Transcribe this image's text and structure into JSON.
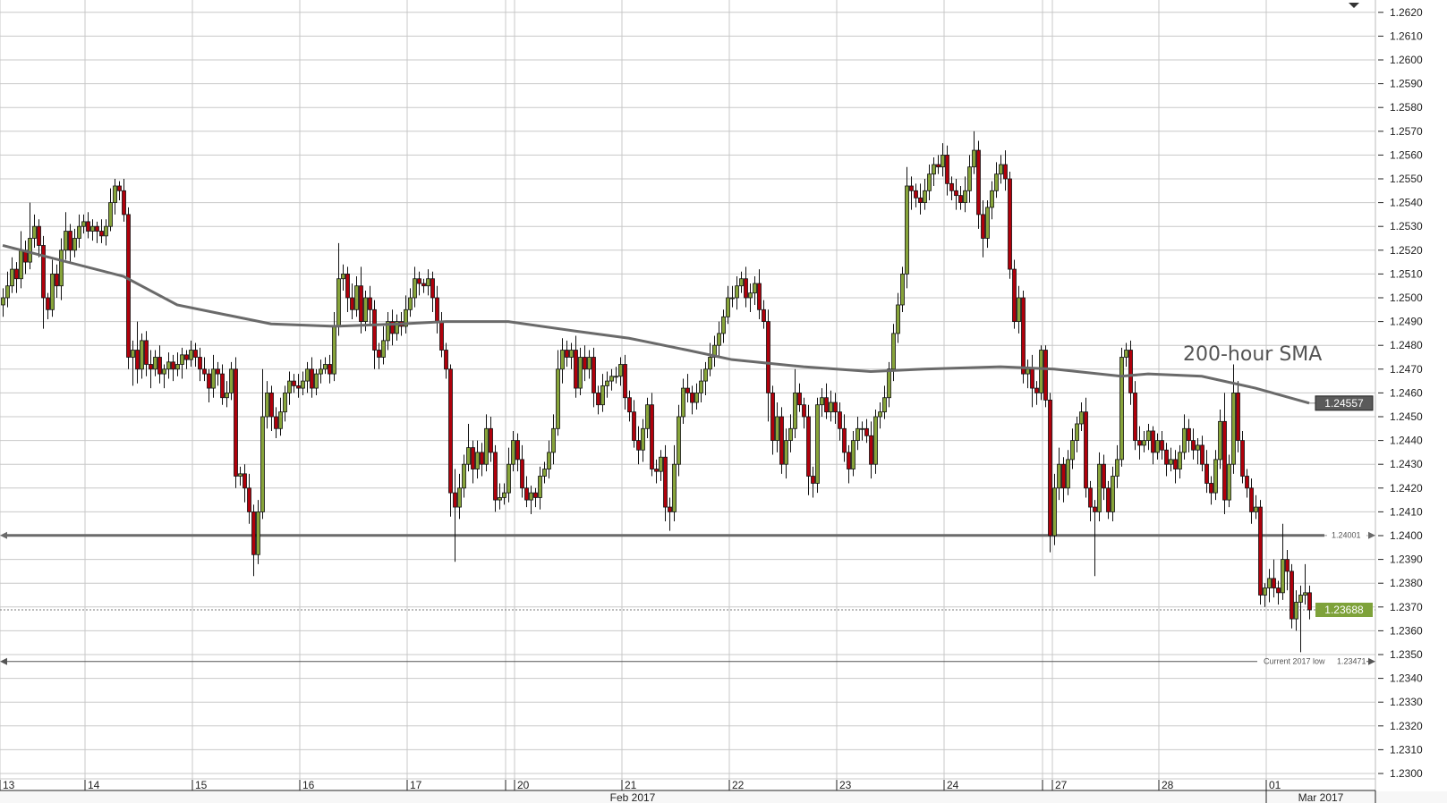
{
  "chart_data": {
    "type": "candlestick",
    "title": "",
    "xlabel": "",
    "ylabel": "",
    "ylim": [
      1.23,
      1.262
    ],
    "grid": true,
    "colors": {
      "up": "#87a43a",
      "down": "#b0000b",
      "sma": "#6a6a6a",
      "last_price_label": "#7ea23a",
      "sma_label": "#5a5a5a",
      "grid": "#c8c8c8",
      "level": "#6a6a6a"
    },
    "y_ticks": [
      "1.2300",
      "1.2310",
      "1.2320",
      "1.2330",
      "1.2340",
      "1.2350",
      "1.2360",
      "1.2370",
      "1.2380",
      "1.2390",
      "1.2400",
      "1.2410",
      "1.2420",
      "1.2430",
      "1.2440",
      "1.2450",
      "1.2460",
      "1.2470",
      "1.2480",
      "1.2490",
      "1.2500",
      "1.2510",
      "1.2520",
      "1.2530",
      "1.2540",
      "1.2550",
      "1.2560",
      "1.2570",
      "1.2580",
      "1.2590",
      "1.2600",
      "1.2610",
      "1.2620"
    ],
    "x_ticks": [
      {
        "label": "13",
        "hour": -0.6
      },
      {
        "label": "14",
        "hour": 18.4
      },
      {
        "label": "15",
        "hour": 42.4
      },
      {
        "label": "16",
        "hour": 66.4
      },
      {
        "label": "17",
        "hour": 90.4
      },
      {
        "label": "20",
        "hour": 114.4
      },
      {
        "label": "21",
        "hour": 138.4
      },
      {
        "label": "22",
        "hour": 162.4
      },
      {
        "label": "23",
        "hour": 186.4
      },
      {
        "label": "24",
        "hour": 210.4
      },
      {
        "label": "27",
        "hour": 234.6
      },
      {
        "label": "28",
        "hour": 258.4
      },
      {
        "label": "01",
        "hour": 282.4
      }
    ],
    "session_breaks": [
      112.4,
      232.4
    ],
    "month_labels": [
      "Feb 2017",
      "Mar 2017"
    ],
    "first_open": 1.2497,
    "close": [
      1.25,
      1.2505,
      1.2512,
      1.2508,
      1.252,
      1.2515,
      1.2525,
      1.253,
      1.2522,
      1.25,
      1.2495,
      1.251,
      1.2505,
      1.252,
      1.2528,
      1.252,
      1.2525,
      1.253,
      1.2532,
      1.2528,
      1.253,
      1.2528,
      1.2526,
      1.253,
      1.254,
      1.2547,
      1.2545,
      1.2535,
      1.2475,
      1.2478,
      1.247,
      1.2482,
      1.2472,
      1.247,
      1.2475,
      1.2468,
      1.247,
      1.2473,
      1.247,
      1.2472,
      1.2476,
      1.2474,
      1.2478,
      1.2475,
      1.247,
      1.2468,
      1.2462,
      1.247,
      1.2468,
      1.2458,
      1.246,
      1.247,
      1.2425,
      1.2426,
      1.242,
      1.241,
      1.2392,
      1.241,
      1.245,
      1.246,
      1.245,
      1.2445,
      1.2452,
      1.246,
      1.2465,
      1.2463,
      1.2462,
      1.2465,
      1.247,
      1.2462,
      1.2468,
      1.247,
      1.2472,
      1.2468,
      1.2488,
      1.2508,
      1.251,
      1.25,
      1.2495,
      1.2505,
      1.249,
      1.25,
      1.2495,
      1.2478,
      1.2475,
      1.2482,
      1.249,
      1.2485,
      1.249,
      1.2488,
      1.2495,
      1.25,
      1.2508,
      1.2506,
      1.2505,
      1.2508,
      1.25,
      1.249,
      1.2478,
      1.247,
      1.2418,
      1.2412,
      1.242,
      1.243,
      1.2437,
      1.2428,
      1.2435,
      1.243,
      1.2445,
      1.2435,
      1.2415,
      1.2416,
      1.2418,
      1.243,
      1.244,
      1.2432,
      1.242,
      1.2415,
      1.2418,
      1.2416,
      1.2425,
      1.2428,
      1.2435,
      1.2445,
      1.247,
      1.2478,
      1.2475,
      1.2478,
      1.2462,
      1.2475,
      1.247,
      1.2475,
      1.246,
      1.2455,
      1.2463,
      1.2465,
      1.2467,
      1.2467,
      1.2472,
      1.2458,
      1.2452,
      1.244,
      1.2436,
      1.2445,
      1.2455,
      1.2428,
      1.2427,
      1.2433,
      1.2412,
      1.241,
      1.243,
      1.245,
      1.2462,
      1.246,
      1.2456,
      1.246,
      1.2465,
      1.247,
      1.2475,
      1.248,
      1.2485,
      1.2492,
      1.25,
      1.25,
      1.2505,
      1.2508,
      1.25,
      1.2502,
      1.2506,
      1.2495,
      1.249,
      1.246,
      1.244,
      1.245,
      1.243,
      1.244,
      1.2445,
      1.246,
      1.2455,
      1.245,
      1.2425,
      1.2422,
      1.2455,
      1.2458,
      1.2452,
      1.2456,
      1.2452,
      1.2445,
      1.2435,
      1.2428,
      1.244,
      1.2445,
      1.2445,
      1.2442,
      1.243,
      1.245,
      1.2452,
      1.2458,
      1.247,
      1.2485,
      1.2497,
      1.251,
      1.2547,
      1.2545,
      1.2542,
      1.254,
      1.2545,
      1.2552,
      1.2556,
      1.2555,
      1.256,
      1.2548,
      1.2545,
      1.2543,
      1.254,
      1.2545,
      1.2555,
      1.2562,
      1.2535,
      1.2525,
      1.2538,
      1.2545,
      1.2552,
      1.2556,
      1.255,
      1.2512,
      1.249,
      1.25,
      1.2468,
      1.247,
      1.2462,
      1.246,
      1.2478,
      1.2457,
      1.24,
      1.242,
      1.243,
      1.242,
      1.2432,
      1.244,
      1.2447,
      1.2452,
      1.242,
      1.2412,
      1.241,
      1.243,
      1.242,
      1.241,
      1.2425,
      1.2432,
      1.2475,
      1.2478,
      1.246,
      1.244,
      1.2438,
      1.244,
      1.2444,
      1.2435,
      1.244,
      1.2436,
      1.243,
      1.2432,
      1.2428,
      1.2435,
      1.2445,
      1.244,
      1.2436,
      1.2438,
      1.243,
      1.2422,
      1.2418,
      1.2432,
      1.2448,
      1.2415,
      1.243,
      1.246,
      1.244,
      1.2425,
      1.242,
      1.241,
      1.2412,
      1.2375,
      1.2378,
      1.2382,
      1.2378,
      1.2376,
      1.239,
      1.2385,
      1.2365,
      1.2372,
      1.2375,
      1.2376,
      1.23688
    ],
    "upper_wick_pips": [
      4,
      6,
      5,
      3,
      8,
      4,
      15,
      5,
      3,
      4,
      2,
      6,
      4,
      5,
      8,
      3,
      4,
      5,
      3,
      4,
      3,
      2,
      5,
      3,
      6,
      3,
      2,
      5,
      3,
      4,
      12,
      3,
      4,
      6,
      3,
      5,
      2,
      4,
      3,
      5,
      3,
      2,
      4,
      3,
      4,
      5,
      2,
      6,
      3,
      4,
      5,
      3,
      5,
      3,
      4,
      6,
      3,
      5,
      20,
      5,
      3,
      4,
      6,
      3,
      4,
      3,
      5,
      4,
      3,
      5,
      2,
      4,
      3,
      4,
      6,
      15,
      4,
      3,
      6,
      4,
      8,
      3,
      5,
      4,
      3,
      6,
      4,
      5,
      3,
      4,
      6,
      4,
      5,
      3,
      2,
      4,
      3,
      5,
      4,
      3,
      2,
      10,
      6,
      4,
      10,
      3,
      5,
      4,
      6,
      5,
      3,
      6,
      4,
      7,
      4,
      3,
      6,
      5,
      3,
      2,
      4,
      3,
      5,
      6,
      8,
      5,
      4,
      3,
      6,
      4,
      5,
      3,
      4,
      3,
      5,
      4,
      3,
      4,
      3,
      4,
      3,
      5,
      6,
      4,
      3,
      5,
      4,
      3,
      5,
      4,
      8,
      5,
      4,
      6,
      3,
      4,
      5,
      3,
      6,
      4,
      5,
      3,
      5,
      5,
      4,
      3,
      5,
      4,
      3,
      6,
      4,
      5,
      3,
      6,
      4,
      5,
      6,
      10,
      4,
      3,
      5,
      4,
      3,
      4,
      6,
      5,
      4,
      4,
      6,
      3,
      4,
      5,
      3,
      4,
      6,
      3,
      4,
      5,
      3,
      4,
      5,
      3,
      8,
      4,
      3,
      6,
      5,
      4,
      3,
      4,
      5,
      4,
      3,
      5,
      4,
      6,
      5,
      8,
      4,
      6,
      3,
      4,
      5,
      4,
      6,
      3,
      4,
      5,
      3,
      4,
      6,
      3,
      2,
      2,
      3,
      6,
      7,
      3,
      4,
      5,
      3,
      4,
      6,
      3,
      3,
      5,
      4,
      3,
      4,
      6,
      4,
      3,
      4,
      5,
      6,
      4,
      3,
      2,
      3,
      4,
      3,
      5,
      4,
      3,
      6,
      4,
      5,
      3,
      4,
      6,
      3,
      4,
      5,
      12,
      4,
      12,
      5,
      4,
      3,
      4,
      5,
      3,
      2,
      4,
      8,
      3,
      15,
      4,
      3,
      5,
      4,
      12,
      3
    ],
    "lower_wick_pips": [
      5,
      4,
      3,
      6,
      4,
      5,
      3,
      4,
      5,
      13,
      4,
      3,
      5,
      6,
      4,
      5,
      3,
      4,
      3,
      3,
      4,
      5,
      3,
      4,
      2,
      5,
      4,
      3,
      5,
      12,
      6,
      4,
      5,
      8,
      3,
      4,
      6,
      4,
      5,
      3,
      6,
      4,
      3,
      4,
      5,
      3,
      6,
      4,
      5,
      3,
      4,
      3,
      5,
      4,
      6,
      5,
      9,
      4,
      3,
      5,
      6,
      4,
      3,
      4,
      5,
      3,
      4,
      3,
      5,
      4,
      3,
      4,
      2,
      4,
      3,
      4,
      5,
      6,
      4,
      3,
      5,
      4,
      6,
      8,
      5,
      3,
      4,
      5,
      3,
      4,
      3,
      3,
      4,
      5,
      3,
      4,
      6,
      5,
      3,
      4,
      10,
      23,
      5,
      4,
      3,
      6,
      4,
      5,
      3,
      4,
      5,
      4,
      3,
      4,
      3,
      5,
      4,
      3,
      6,
      4,
      5,
      3,
      4,
      5,
      3,
      6,
      4,
      5,
      4,
      3,
      5,
      4,
      6,
      4,
      3,
      5,
      4,
      3,
      4,
      5,
      4,
      3,
      6,
      5,
      4,
      3,
      5,
      4,
      6,
      8,
      4,
      5,
      3,
      4,
      5,
      3,
      4,
      6,
      3,
      4,
      5,
      4,
      3,
      4,
      5,
      3,
      4,
      6,
      5,
      4,
      3,
      12,
      6,
      5,
      4,
      6,
      5,
      4,
      3,
      5,
      8,
      6,
      4,
      5,
      3,
      4,
      5,
      5,
      4,
      6,
      3,
      4,
      5,
      3,
      6,
      4,
      5,
      3,
      4,
      5,
      4,
      3,
      6,
      8,
      4,
      5,
      3,
      4,
      5,
      3,
      4,
      5,
      4,
      6,
      3,
      4,
      5,
      3,
      6,
      8,
      4,
      5,
      3,
      4,
      5,
      4,
      3,
      5,
      4,
      6,
      8,
      5,
      3,
      3,
      7,
      4,
      5,
      6,
      3,
      4,
      5,
      3,
      4,
      6,
      27,
      4,
      5,
      3,
      4,
      5,
      3,
      4,
      5,
      4,
      6,
      3,
      4,
      5,
      3,
      4,
      5,
      3,
      6,
      4,
      3,
      5,
      4,
      6,
      3,
      4,
      5,
      3,
      4,
      6,
      3,
      4,
      5,
      3,
      4,
      5,
      3,
      4,
      5,
      6,
      4,
      5,
      3,
      8,
      4,
      5,
      21,
      4,
      4
    ],
    "sma": {
      "label": "200-hour SMA",
      "points": [
        [
          0,
          1.2522
        ],
        [
          27,
          1.2509
        ],
        [
          39,
          1.2497
        ],
        [
          60,
          1.2489
        ],
        [
          74,
          1.2488
        ],
        [
          89,
          1.2489
        ],
        [
          99,
          1.249
        ],
        [
          113,
          1.249
        ],
        [
          128,
          1.2486
        ],
        [
          140,
          1.2483
        ],
        [
          153,
          1.2478
        ],
        [
          163,
          1.2474
        ],
        [
          179,
          1.2471
        ],
        [
          194,
          1.2469
        ],
        [
          206,
          1.247
        ],
        [
          223,
          1.2471
        ],
        [
          235,
          1.247
        ],
        [
          250,
          1.2467
        ],
        [
          256,
          1.2468
        ],
        [
          268,
          1.2467
        ],
        [
          280,
          1.2462
        ],
        [
          292,
          1.24557
        ]
      ],
      "value_label": "1.24557"
    },
    "levels": [
      {
        "value": 1.24001,
        "label": "1.24001",
        "style": "thick"
      },
      {
        "value": 1.23471,
        "label": "1.23471",
        "caption": "Current 2017 low",
        "style": "thin"
      }
    ],
    "last_price": {
      "value": 1.23688,
      "label": "1.23688"
    }
  }
}
